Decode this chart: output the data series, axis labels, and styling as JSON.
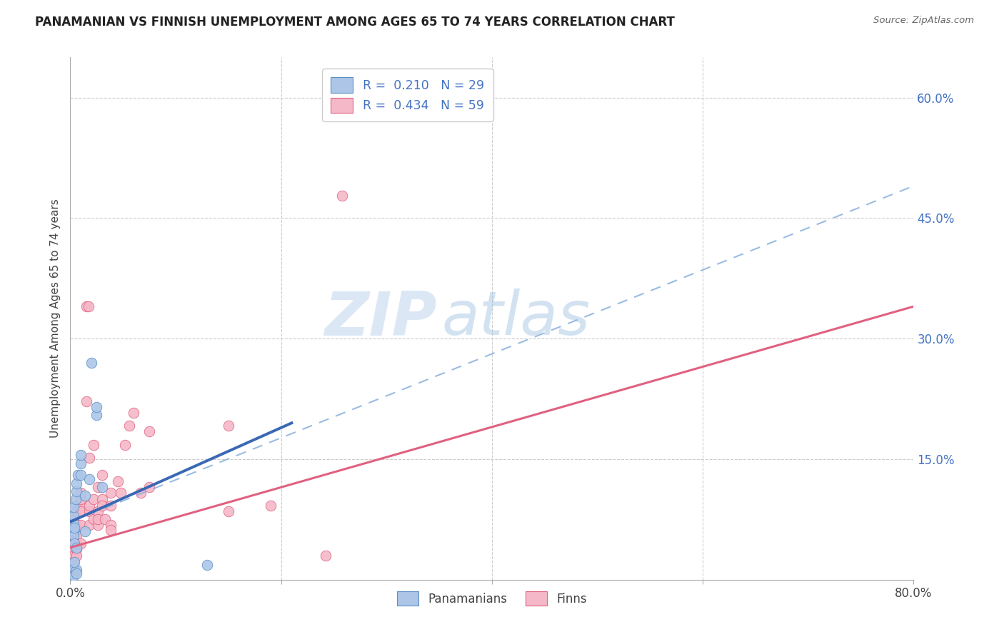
{
  "title": "PANAMANIAN VS FINNISH UNEMPLOYMENT AMONG AGES 65 TO 74 YEARS CORRELATION CHART",
  "source": "Source: ZipAtlas.com",
  "ylabel": "Unemployment Among Ages 65 to 74 years",
  "xlim": [
    0,
    0.8
  ],
  "ylim": [
    0,
    0.65
  ],
  "xtick_vals": [
    0.0,
    0.2,
    0.4,
    0.6,
    0.8
  ],
  "xtick_labels": [
    "0.0%",
    "",
    "",
    "",
    "80.0%"
  ],
  "ytick_right": [
    0.0,
    0.15,
    0.3,
    0.45,
    0.6
  ],
  "ytick_right_labels": [
    "",
    "15.0%",
    "30.0%",
    "45.0%",
    "60.0%"
  ],
  "watermark_zip": "ZIP",
  "watermark_atlas": "atlas",
  "legend_r_pan": "0.210",
  "legend_n_pan": "29",
  "legend_r_fin": "0.434",
  "legend_n_fin": "59",
  "legend_label_pan": "Panamanians",
  "legend_label_fin": "Finns",
  "pan_color": "#adc6e8",
  "fin_color": "#f5b8c8",
  "pan_edge_color": "#5b8ec4",
  "fin_edge_color": "#e06080",
  "pan_line_color": "#3a68b5",
  "fin_line_color": "#e06080",
  "dash_line_color": "#8ab0dc",
  "pan_scatter": [
    [
      0.003,
      0.07
    ],
    [
      0.003,
      0.08
    ],
    [
      0.003,
      0.06
    ],
    [
      0.003,
      0.055
    ],
    [
      0.003,
      0.09
    ],
    [
      0.004,
      0.065
    ],
    [
      0.004,
      0.045
    ],
    [
      0.005,
      0.1
    ],
    [
      0.006,
      0.11
    ],
    [
      0.006,
      0.12
    ],
    [
      0.006,
      0.04
    ],
    [
      0.007,
      0.13
    ],
    [
      0.01,
      0.145
    ],
    [
      0.01,
      0.155
    ],
    [
      0.01,
      0.13
    ],
    [
      0.014,
      0.105
    ],
    [
      0.014,
      0.06
    ],
    [
      0.018,
      0.125
    ],
    [
      0.02,
      0.27
    ],
    [
      0.025,
      0.205
    ],
    [
      0.025,
      0.215
    ],
    [
      0.03,
      0.115
    ],
    [
      0.003,
      0.008
    ],
    [
      0.003,
      0.015
    ],
    [
      0.003,
      0.005
    ],
    [
      0.006,
      0.012
    ],
    [
      0.006,
      0.008
    ],
    [
      0.004,
      0.022
    ],
    [
      0.13,
      0.018
    ]
  ],
  "fin_scatter": [
    [
      0.003,
      0.045
    ],
    [
      0.003,
      0.038
    ],
    [
      0.003,
      0.062
    ],
    [
      0.003,
      0.055
    ],
    [
      0.003,
      0.075
    ],
    [
      0.003,
      0.068
    ],
    [
      0.003,
      0.03
    ],
    [
      0.003,
      0.022
    ],
    [
      0.003,
      0.015
    ],
    [
      0.003,
      0.008
    ],
    [
      0.006,
      0.068
    ],
    [
      0.006,
      0.062
    ],
    [
      0.006,
      0.055
    ],
    [
      0.006,
      0.045
    ],
    [
      0.006,
      0.038
    ],
    [
      0.006,
      0.03
    ],
    [
      0.006,
      0.092
    ],
    [
      0.006,
      0.085
    ],
    [
      0.01,
      0.045
    ],
    [
      0.01,
      0.068
    ],
    [
      0.01,
      0.092
    ],
    [
      0.01,
      0.085
    ],
    [
      0.01,
      0.1
    ],
    [
      0.01,
      0.108
    ],
    [
      0.015,
      0.34
    ],
    [
      0.017,
      0.34
    ],
    [
      0.015,
      0.222
    ],
    [
      0.018,
      0.152
    ],
    [
      0.018,
      0.085
    ],
    [
      0.018,
      0.092
    ],
    [
      0.018,
      0.068
    ],
    [
      0.022,
      0.168
    ],
    [
      0.022,
      0.1
    ],
    [
      0.022,
      0.075
    ],
    [
      0.026,
      0.115
    ],
    [
      0.026,
      0.085
    ],
    [
      0.026,
      0.068
    ],
    [
      0.026,
      0.075
    ],
    [
      0.03,
      0.13
    ],
    [
      0.03,
      0.1
    ],
    [
      0.03,
      0.092
    ],
    [
      0.033,
      0.075
    ],
    [
      0.038,
      0.108
    ],
    [
      0.038,
      0.092
    ],
    [
      0.038,
      0.068
    ],
    [
      0.038,
      0.062
    ],
    [
      0.045,
      0.122
    ],
    [
      0.048,
      0.108
    ],
    [
      0.052,
      0.168
    ],
    [
      0.056,
      0.192
    ],
    [
      0.06,
      0.208
    ],
    [
      0.067,
      0.108
    ],
    [
      0.075,
      0.185
    ],
    [
      0.075,
      0.115
    ],
    [
      0.15,
      0.192
    ],
    [
      0.15,
      0.085
    ],
    [
      0.19,
      0.092
    ],
    [
      0.242,
      0.03
    ],
    [
      0.258,
      0.478
    ]
  ],
  "pan_trend_x": [
    0.0,
    0.21
  ],
  "pan_trend_y": [
    0.072,
    0.195
  ],
  "fin_trend_x": [
    0.0,
    0.8
  ],
  "fin_trend_y": [
    0.04,
    0.34
  ],
  "dash_trend_x": [
    0.0,
    0.8
  ],
  "dash_trend_y": [
    0.072,
    0.49
  ]
}
